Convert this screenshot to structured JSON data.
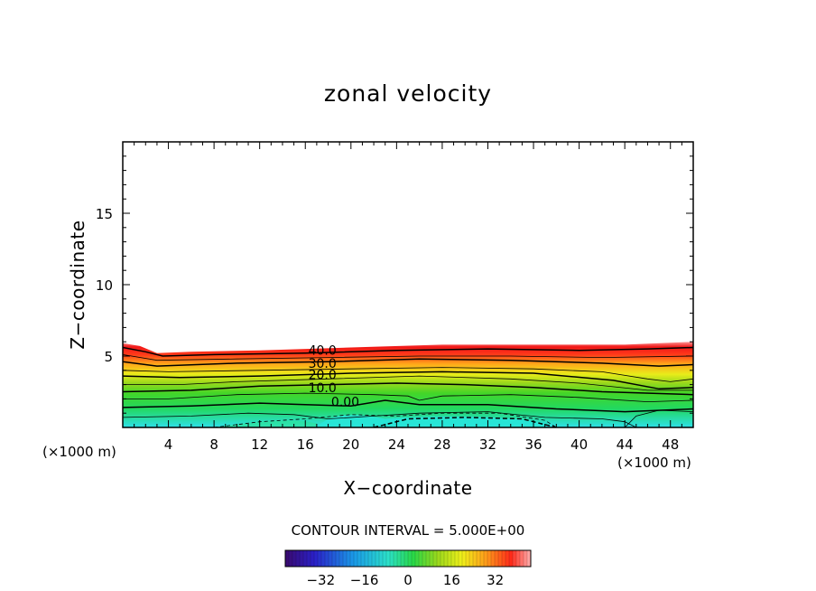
{
  "chart_data": {
    "type": "contour",
    "title": "zonal velocity",
    "xlabel": "X−coordinate",
    "ylabel": "Z−coordinate",
    "x_unit_left": "(×1000 m)",
    "x_unit_right": "(×1000 m)",
    "xlim": [
      0,
      50
    ],
    "ylim": [
      0,
      20
    ],
    "x_ticks": [
      4,
      8,
      12,
      16,
      20,
      24,
      28,
      32,
      36,
      40,
      44,
      48
    ],
    "y_ticks": [
      5,
      10,
      15
    ],
    "contour_labels": [
      {
        "text": "40.0",
        "x": 17.5,
        "y": 5.4
      },
      {
        "text": "30.0",
        "x": 17.5,
        "y": 4.5
      },
      {
        "text": "20.0",
        "x": 17.5,
        "y": 3.7
      },
      {
        "text": "10.0",
        "x": 17.5,
        "y": 2.8
      },
      {
        "text": "0.00",
        "x": 19.5,
        "y": 1.8
      }
    ],
    "contour_interval_text": "CONTOUR INTERVAL = 5.000E+00",
    "colorbar": {
      "range": [
        -45,
        45
      ],
      "ticks": [
        -32,
        -16,
        0,
        16,
        32
      ]
    }
  }
}
